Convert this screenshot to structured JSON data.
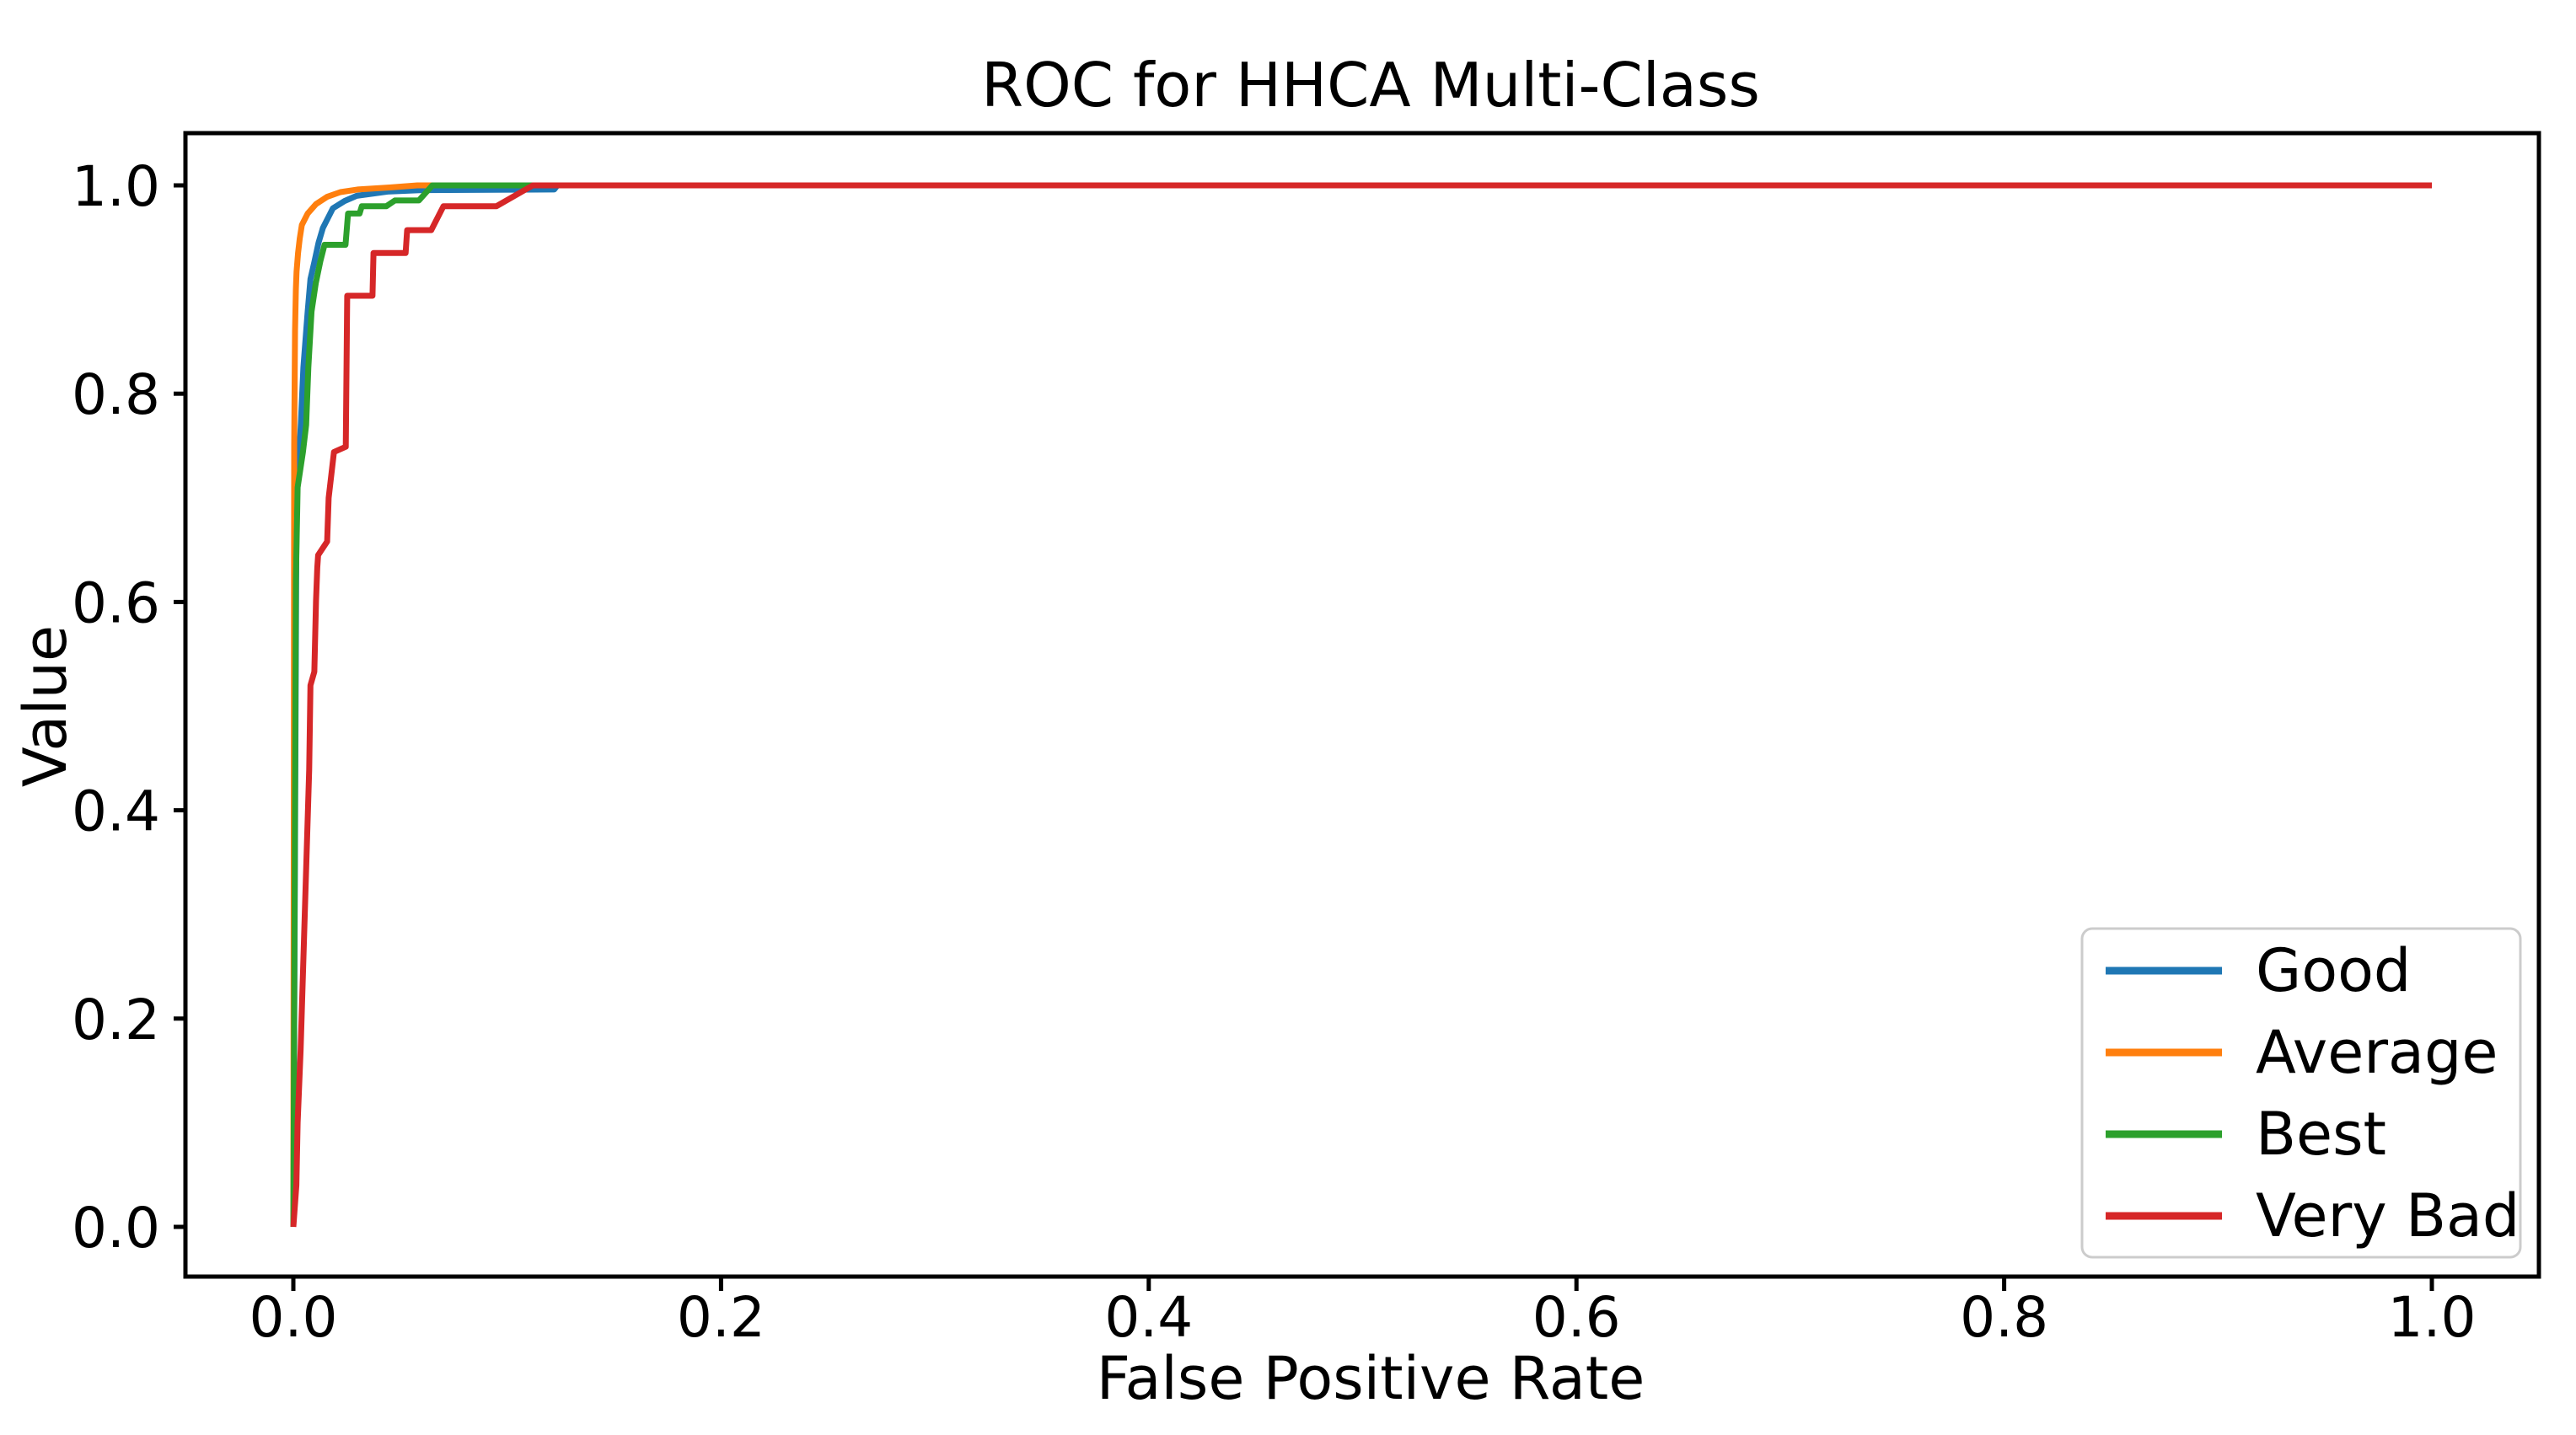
{
  "figure": {
    "title": "ROC for HHCA Multi-Class",
    "xlabel": "False Positive Rate",
    "ylabel": "Value"
  },
  "chart_data": {
    "type": "line",
    "title": "ROC for HHCA Multi-Class",
    "xlabel": "False Positive Rate",
    "ylabel": "Value",
    "xlim": [
      -0.05,
      1.05
    ],
    "ylim": [
      -0.048,
      1.05
    ],
    "grid": false,
    "legend_position": "lower right",
    "x_ticks": [
      0.0,
      0.2,
      0.4,
      0.6,
      0.8,
      1.0
    ],
    "x_tick_labels": [
      "0.0",
      "0.2",
      "0.4",
      "0.6",
      "0.8",
      "1.0"
    ],
    "y_ticks": [
      0.0,
      0.2,
      0.4,
      0.6,
      0.8,
      1.0
    ],
    "y_tick_labels": [
      "0.0",
      "0.2",
      "0.4",
      "0.6",
      "0.8",
      "1.0"
    ],
    "series": [
      {
        "name": "Good",
        "color": "#1f77b4",
        "points": [
          [
            0,
            0
          ],
          [
            0.0015,
            0.7
          ],
          [
            0.002,
            0.717
          ],
          [
            0.0035,
            0.771
          ],
          [
            0.0047,
            0.825
          ],
          [
            0.006,
            0.86
          ],
          [
            0.0067,
            0.879
          ],
          [
            0.008,
            0.91
          ],
          [
            0.0099,
            0.927
          ],
          [
            0.0118,
            0.945
          ],
          [
            0.0138,
            0.959
          ],
          [
            0.0165,
            0.97
          ],
          [
            0.0185,
            0.978
          ],
          [
            0.024,
            0.985
          ],
          [
            0.0296,
            0.99
          ],
          [
            0.044,
            0.994
          ],
          [
            0.06,
            0.9955
          ],
          [
            0.122,
            0.996
          ],
          [
            0.1235,
            1.0
          ],
          [
            1.0,
            1.0
          ]
        ]
      },
      {
        "name": "Average",
        "color": "#ff7f0e",
        "points": [
          [
            0,
            0
          ],
          [
            0.0004,
            0.75
          ],
          [
            0.0008,
            0.86
          ],
          [
            0.0012,
            0.9
          ],
          [
            0.0015,
            0.917
          ],
          [
            0.0022,
            0.935
          ],
          [
            0.003,
            0.949
          ],
          [
            0.004,
            0.962
          ],
          [
            0.0067,
            0.973
          ],
          [
            0.0106,
            0.982
          ],
          [
            0.0158,
            0.989
          ],
          [
            0.022,
            0.9935
          ],
          [
            0.03,
            0.996
          ],
          [
            0.045,
            0.998
          ],
          [
            0.058,
            1.0
          ],
          [
            1.0,
            1.0
          ]
        ]
      },
      {
        "name": "Best",
        "color": "#2ca02c",
        "points": [
          [
            0,
            0
          ],
          [
            0.0012,
            0.62
          ],
          [
            0.002,
            0.71
          ],
          [
            0.0045,
            0.744
          ],
          [
            0.006,
            0.77
          ],
          [
            0.007,
            0.825
          ],
          [
            0.0085,
            0.879
          ],
          [
            0.0105,
            0.906
          ],
          [
            0.0126,
            0.927
          ],
          [
            0.0146,
            0.943
          ],
          [
            0.0244,
            0.943
          ],
          [
            0.0256,
            0.973
          ],
          [
            0.031,
            0.973
          ],
          [
            0.032,
            0.98
          ],
          [
            0.0435,
            0.98
          ],
          [
            0.0475,
            0.9855
          ],
          [
            0.0587,
            0.9855
          ],
          [
            0.065,
            1.0
          ],
          [
            1.0,
            1.0
          ]
        ]
      },
      {
        "name": "Very Bad",
        "color": "#d62728",
        "points": [
          [
            0,
            0
          ],
          [
            0.0014,
            0.04
          ],
          [
            0.002,
            0.1
          ],
          [
            0.0034,
            0.169
          ],
          [
            0.0054,
            0.304
          ],
          [
            0.0074,
            0.439
          ],
          [
            0.008,
            0.52
          ],
          [
            0.0098,
            0.533
          ],
          [
            0.0106,
            0.601
          ],
          [
            0.0112,
            0.633
          ],
          [
            0.0116,
            0.645
          ],
          [
            0.0158,
            0.658
          ],
          [
            0.0165,
            0.7
          ],
          [
            0.019,
            0.744
          ],
          [
            0.0245,
            0.749
          ],
          [
            0.0252,
            0.894
          ],
          [
            0.037,
            0.894
          ],
          [
            0.0375,
            0.935
          ],
          [
            0.0525,
            0.935
          ],
          [
            0.0532,
            0.957
          ],
          [
            0.0645,
            0.957
          ],
          [
            0.0702,
            0.98
          ],
          [
            0.095,
            0.98
          ],
          [
            0.112,
            1.0
          ],
          [
            1.0,
            1.0
          ]
        ]
      }
    ]
  }
}
